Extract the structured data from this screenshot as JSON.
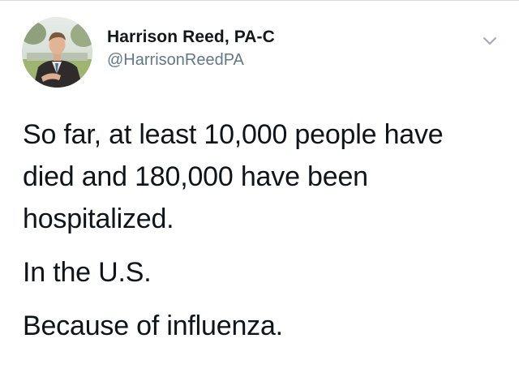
{
  "author": {
    "display_name": "Harrison Reed, PA-C",
    "handle": "@HarrisonReedPA"
  },
  "icons": {
    "menu": "chevron-down-icon"
  },
  "tweet": {
    "paragraphs": [
      "So far, at least 10,000 people have died and 180,000 have been hospitalized.",
      "In the U.S.",
      "Because of influenza."
    ]
  },
  "colors": {
    "name": "#14171a",
    "handle": "#657786",
    "text": "#0f1419",
    "chevron": "#a0aab4"
  }
}
